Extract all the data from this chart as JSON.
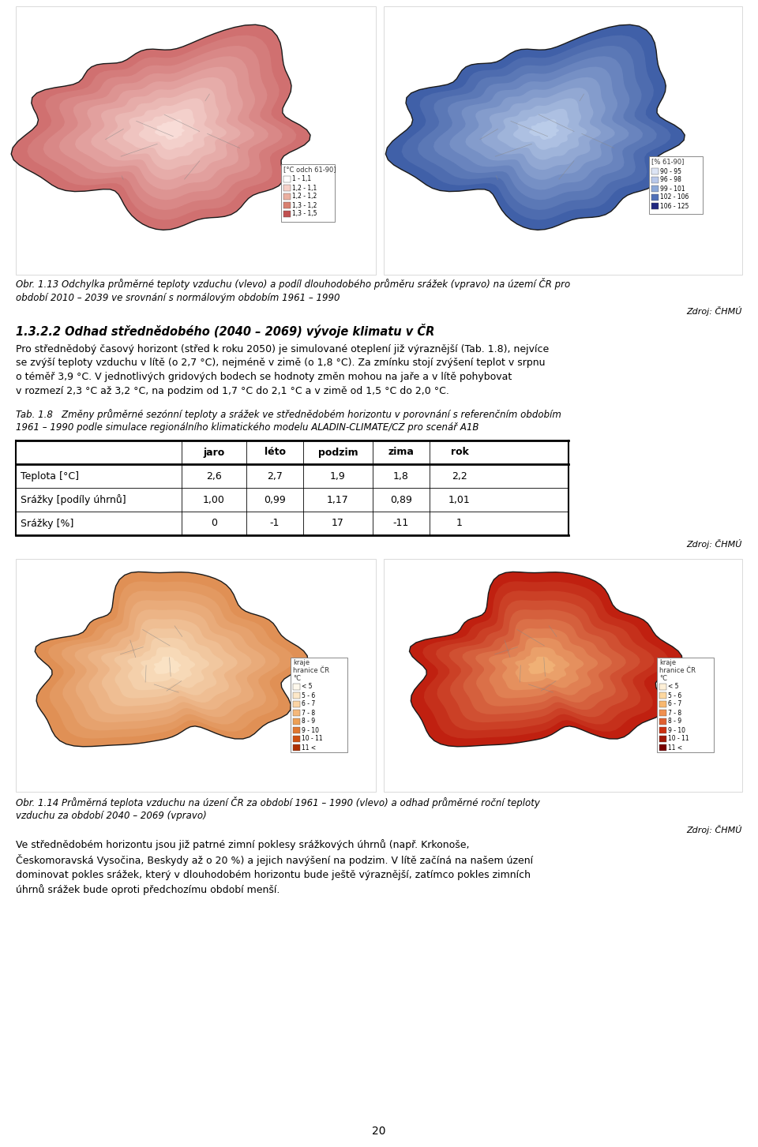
{
  "page_background": "#ffffff",
  "page_number": "20",
  "section_top": {
    "map_left_legend_title": "[°C odch 61-90]",
    "map_left_legend": [
      "1 - 1,1",
      "1,2 - 1,1",
      "1,2 - 1,2",
      "1,3 - 1,2",
      "1,3 - 1,5"
    ],
    "map_left_colors": [
      "#ffffff",
      "#f5d0c8",
      "#ebb0a0",
      "#d88070",
      "#c05050"
    ],
    "map_right_legend_title": "[% 61-90]",
    "map_right_legend": [
      "90 - 95",
      "96 - 98",
      "99 - 101",
      "102 - 106",
      "106 - 125"
    ],
    "map_right_colors": [
      "#dce4f5",
      "#b8c8ea",
      "#8ca8d8",
      "#5070b8",
      "#202880"
    ],
    "caption": "Obr. 1.13 Odchylka průměrné teploty vzduchu (vlevo) a podíl dlouhodobého průměru srážek (vpravo) na úzení ČR pro\nozdobí 2010 – 2039 ve srovnání s normálovým obdobím 1961 – 1990",
    "source": "Zdroj: ČHMÚ"
  },
  "section_middle": {
    "heading": "1.3.2.2 Odhad střednědobého (2040 – 2069) vývoje klimatu v ČR",
    "paragraph1": "Pro střednědobý časový horizont (střed k roku 2050) je simulované oteplení již výraznější (Tab. 1.8), nejvíce\nse zvýší teploty vzduchu v lítě (o 2,7 °C), nejméně v zimě (o 1,8 °C). Za zmínku stojí zvýšení teplot v srpnu\no téměř 3,9 °C. V jednotlivých gridových bodech se hodnoty změn mohou na jaře a v lítě pohybovat\nv rozmezí 2,3 °C až 3,2 °C, na podzim od 1,7 °C do 2,1 °C a v zimě od 1,5 °C do 2,0 °C.",
    "table_caption": "Tab. 1.8   Změny průměrné sezónní teploty a srážek ve střednědobém horizontu v porovnání s referenčním obdobím\n1961 – 1990 podle simulace regionálního klimatického modelu ALADIN-CLIMATE/CZ pro scenář A1B",
    "table_headers": [
      "",
      "jaro",
      "léto",
      "podzim",
      "zima",
      "rok"
    ],
    "table_rows": [
      [
        "Teplota [°C]",
        "2,6",
        "2,7",
        "1,9",
        "1,8",
        "2,2"
      ],
      [
        "Srážky [podíly úhrnů]",
        "1,00",
        "0,99",
        "1,17",
        "0,89",
        "1,01"
      ],
      [
        "Srážky [%]",
        "0",
        "-1",
        "17",
        "-11",
        "1"
      ]
    ],
    "source": "Zdroj: ČHMÚ"
  },
  "section_bottom": {
    "map_legend_title1": "kraje",
    "map_legend_title2": "hranice ČR",
    "map_legend_title3": "°C",
    "map_left_legend": [
      "< 5",
      "5 - 6",
      "6 - 7",
      "7 - 8",
      "8 - 9",
      "9 - 10",
      "10 - 11",
      "11 <"
    ],
    "map_left_colors": [
      "#fef8ec",
      "#fde8c8",
      "#fbd4a4",
      "#f5b87a",
      "#eda055",
      "#e07830",
      "#d05010",
      "#b03000"
    ],
    "map_right_colors": [
      "#fef0d8",
      "#fdd8a0",
      "#f8b870",
      "#f09050",
      "#e06030",
      "#cc3010",
      "#a01808",
      "#780000"
    ],
    "caption": "Obr. 1.14 Průměrná teplota vzduchu na úzení ČR za období 1961 – 1990 (vlevo) a odhad průměrné roční teploty\nvzduchu za období 2040 – 2069 (vpravo)",
    "source": "Zdroj: ČHMÚ",
    "paragraph": "Ve střednědobém horizontu jsou již patrné zimní poklesy srážkových úhrnů (např. Krkonoše,\nČeskomoravská Vysočina, Beskydy až o 20 %) a jejich navýšení na podzim. V lítě začíná na našem úzení\ndominovat pokles srážek, který v dlouhodobém horizontu bude ještě výraznější, zatímco pokles zimních\núhrnů srážek bude oproti předchozímu období menší.",
    "underline_word": "srážkových úhrnů"
  }
}
